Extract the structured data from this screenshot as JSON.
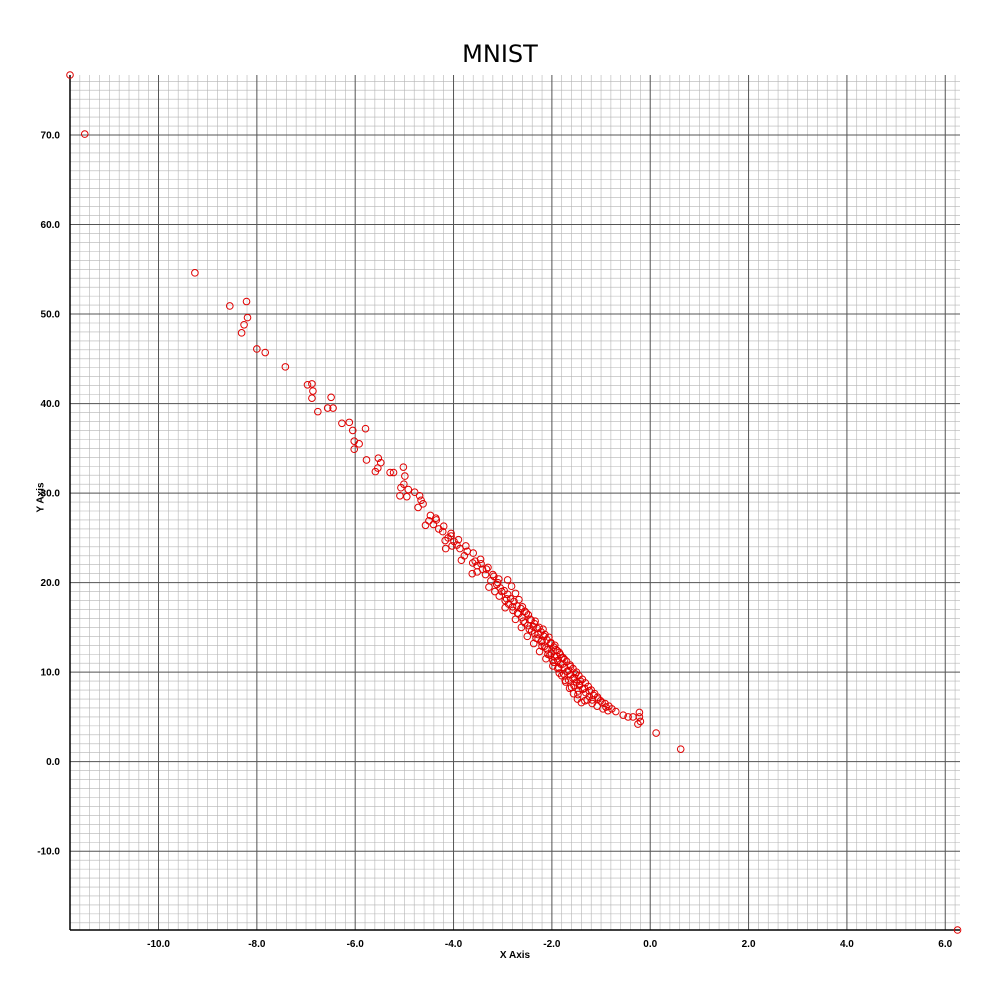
{
  "chart_data": {
    "type": "scatter",
    "title": "MNIST",
    "xlabel": "X Axis",
    "ylabel": "Y Axis",
    "xlim": [
      -11.8,
      6.3
    ],
    "ylim": [
      -18.8,
      76.7
    ],
    "grid": true,
    "x_ticks": [
      -10.0,
      -8.0,
      -6.0,
      -4.0,
      -2.0,
      0.0,
      2.0,
      4.0,
      6.0
    ],
    "y_ticks": [
      -10.0,
      0.0,
      10.0,
      20.0,
      30.0,
      40.0,
      50.0,
      60.0,
      70.0
    ],
    "x_tick_labels": [
      "-10.0",
      "-8.0",
      "-6.0",
      "-4.0",
      "-2.0",
      "0.0",
      "2.0",
      "4.0",
      "6.0"
    ],
    "y_tick_labels": [
      "-10.0",
      "0.0",
      "10.0",
      "20.0",
      "30.0",
      "40.0",
      "50.0",
      "60.0",
      "70.0"
    ],
    "marker": "open-circle",
    "marker_color": "#e00000",
    "grid_major_color": "#555555",
    "grid_minor_color": "#b4b4b4",
    "points": [
      [
        -11.8,
        76.7
      ],
      [
        -11.5,
        70.1
      ],
      [
        -9.26,
        54.6
      ],
      [
        -8.55,
        50.9
      ],
      [
        -8.21,
        51.4
      ],
      [
        -8.19,
        49.6
      ],
      [
        -8.26,
        48.8
      ],
      [
        -8.31,
        47.9
      ],
      [
        -8.0,
        46.1
      ],
      [
        -7.83,
        45.7
      ],
      [
        -7.42,
        44.1
      ],
      [
        -6.97,
        42.1
      ],
      [
        -6.88,
        42.2
      ],
      [
        -6.86,
        41.4
      ],
      [
        -6.88,
        40.6
      ],
      [
        -6.76,
        39.1
      ],
      [
        -6.49,
        40.7
      ],
      [
        -6.56,
        39.5
      ],
      [
        -6.45,
        39.5
      ],
      [
        -6.27,
        37.8
      ],
      [
        -6.12,
        37.9
      ],
      [
        -6.05,
        37.0
      ],
      [
        -5.79,
        37.2
      ],
      [
        -6.02,
        35.8
      ],
      [
        -5.92,
        35.5
      ],
      [
        -6.02,
        34.9
      ],
      [
        -5.77,
        33.7
      ],
      [
        -5.53,
        33.9
      ],
      [
        -5.48,
        33.4
      ],
      [
        -5.54,
        32.8
      ],
      [
        -5.59,
        32.4
      ],
      [
        -5.29,
        32.3
      ],
      [
        -5.22,
        32.3
      ],
      [
        -5.02,
        32.9
      ],
      [
        -4.99,
        31.9
      ],
      [
        -5.01,
        31.0
      ],
      [
        -5.07,
        30.6
      ],
      [
        -4.92,
        30.4
      ],
      [
        -4.79,
        30.1
      ],
      [
        -4.95,
        29.6
      ],
      [
        -5.09,
        29.7
      ],
      [
        -4.69,
        29.7
      ],
      [
        -4.66,
        29.2
      ],
      [
        -4.62,
        28.8
      ],
      [
        -4.72,
        28.4
      ],
      [
        -4.47,
        27.5
      ],
      [
        -4.36,
        27.2
      ],
      [
        -4.5,
        26.9
      ],
      [
        -4.41,
        26.5
      ],
      [
        -4.57,
        26.4
      ],
      [
        -4.3,
        26.0
      ],
      [
        -4.22,
        25.7
      ],
      [
        -4.05,
        25.5
      ],
      [
        -4.11,
        25.0
      ],
      [
        -4.17,
        24.7
      ],
      [
        -3.99,
        24.6
      ],
      [
        -3.93,
        24.2
      ],
      [
        -4.03,
        24.1
      ],
      [
        -3.87,
        23.8
      ],
      [
        -4.16,
        23.8
      ],
      [
        -3.72,
        23.5
      ],
      [
        -3.78,
        23.0
      ],
      [
        -3.84,
        22.5
      ],
      [
        -3.56,
        22.4
      ],
      [
        -3.61,
        22.2
      ],
      [
        -3.44,
        22.1
      ],
      [
        -3.52,
        21.9
      ],
      [
        -3.33,
        21.5
      ],
      [
        -3.41,
        21.5
      ],
      [
        -3.52,
        21.2
      ],
      [
        -3.62,
        21.0
      ],
      [
        -3.35,
        20.9
      ],
      [
        -3.18,
        20.7
      ],
      [
        -3.08,
        20.4
      ],
      [
        -3.24,
        20.2
      ],
      [
        -3.12,
        19.8
      ],
      [
        -3.28,
        19.5
      ],
      [
        -3.05,
        19.4
      ],
      [
        -2.97,
        19.1
      ],
      [
        -3.16,
        19.0
      ],
      [
        -2.9,
        18.7
      ],
      [
        -3.07,
        18.5
      ],
      [
        -2.84,
        18.2
      ],
      [
        -2.95,
        18.0
      ],
      [
        -2.77,
        17.9
      ],
      [
        -2.88,
        17.6
      ],
      [
        -2.71,
        17.4
      ],
      [
        -2.95,
        17.2
      ],
      [
        -2.63,
        17.1
      ],
      [
        -2.79,
        16.9
      ],
      [
        -2.55,
        16.8
      ],
      [
        -2.68,
        16.5
      ],
      [
        -2.48,
        16.4
      ],
      [
        -2.61,
        16.1
      ],
      [
        -2.74,
        15.9
      ],
      [
        -2.42,
        15.8
      ],
      [
        -2.55,
        15.5
      ],
      [
        -2.35,
        15.4
      ],
      [
        -2.49,
        15.2
      ],
      [
        -2.62,
        15.0
      ],
      [
        -2.3,
        14.9
      ],
      [
        -2.41,
        14.6
      ],
      [
        -2.22,
        14.5
      ],
      [
        -2.35,
        14.3
      ],
      [
        -2.5,
        14.0
      ],
      [
        -2.16,
        14.0
      ],
      [
        -2.28,
        13.7
      ],
      [
        -2.1,
        13.6
      ],
      [
        -2.22,
        13.4
      ],
      [
        -2.37,
        13.2
      ],
      [
        -2.02,
        13.2
      ],
      [
        -2.15,
        12.9
      ],
      [
        -1.96,
        12.8
      ],
      [
        -2.09,
        12.5
      ],
      [
        -2.25,
        12.3
      ],
      [
        -1.89,
        12.4
      ],
      [
        -2.01,
        12.1
      ],
      [
        -1.83,
        12.0
      ],
      [
        -1.95,
        11.7
      ],
      [
        -2.12,
        11.5
      ],
      [
        -1.77,
        11.6
      ],
      [
        -1.88,
        11.3
      ],
      [
        -1.7,
        11.2
      ],
      [
        -1.82,
        10.9
      ],
      [
        -1.98,
        10.7
      ],
      [
        -1.63,
        10.8
      ],
      [
        -1.75,
        10.5
      ],
      [
        -1.57,
        10.4
      ],
      [
        -1.69,
        10.1
      ],
      [
        -1.85,
        9.9
      ],
      [
        -1.5,
        10.0
      ],
      [
        -1.62,
        9.7
      ],
      [
        -1.45,
        9.6
      ],
      [
        -1.57,
        9.3
      ],
      [
        -1.73,
        9.1
      ],
      [
        -1.38,
        9.2
      ],
      [
        -1.5,
        8.9
      ],
      [
        -1.32,
        8.8
      ],
      [
        -1.44,
        8.5
      ],
      [
        -1.6,
        8.3
      ],
      [
        -1.26,
        8.4
      ],
      [
        -1.37,
        8.1
      ],
      [
        -1.2,
        8.0
      ],
      [
        -1.31,
        7.7
      ],
      [
        -1.47,
        7.5
      ],
      [
        -1.13,
        7.6
      ],
      [
        -1.24,
        7.3
      ],
      [
        -1.07,
        7.2
      ],
      [
        -1.18,
        6.9
      ],
      [
        -1.33,
        6.8
      ],
      [
        -1.01,
        6.8
      ],
      [
        -0.92,
        6.5
      ],
      [
        -0.84,
        6.2
      ],
      [
        -0.78,
        5.9
      ],
      [
        -0.7,
        5.6
      ],
      [
        -0.55,
        5.2
      ],
      [
        -0.45,
        5.0
      ],
      [
        -0.35,
        5.0
      ],
      [
        -0.22,
        5.0
      ],
      [
        -0.25,
        4.2
      ],
      [
        -0.2,
        4.5
      ],
      [
        -0.22,
        5.5
      ],
      [
        0.12,
        3.2
      ],
      [
        0.62,
        1.4
      ],
      [
        6.25,
        -18.8
      ],
      [
        -2.52,
        16.6
      ],
      [
        -2.44,
        15.9
      ],
      [
        -2.38,
        15.1
      ],
      [
        -2.28,
        14.2
      ],
      [
        -2.2,
        13.5
      ],
      [
        -2.12,
        12.7
      ],
      [
        -2.04,
        11.9
      ],
      [
        -1.96,
        11.1
      ],
      [
        -1.88,
        10.4
      ],
      [
        -1.8,
        9.6
      ],
      [
        -1.72,
        8.9
      ],
      [
        -1.64,
        8.2
      ],
      [
        -1.56,
        7.6
      ],
      [
        -1.48,
        7.0
      ],
      [
        -1.4,
        6.6
      ],
      [
        -2.6,
        17.3
      ],
      [
        -2.67,
        18.1
      ],
      [
        -2.74,
        18.8
      ],
      [
        -2.82,
        19.6
      ],
      [
        -2.9,
        20.3
      ],
      [
        -2.34,
        15.7
      ],
      [
        -2.18,
        14.8
      ],
      [
        -2.06,
        13.9
      ],
      [
        -1.94,
        13.0
      ],
      [
        -1.85,
        12.2
      ],
      [
        -1.74,
        11.4
      ],
      [
        -1.62,
        10.6
      ],
      [
        -1.52,
        9.8
      ],
      [
        -1.42,
        9.0
      ],
      [
        -1.34,
        8.2
      ],
      [
        -1.24,
        7.9
      ],
      [
        -1.15,
        7.4
      ],
      [
        -1.06,
        7.0
      ],
      [
        -0.98,
        6.6
      ],
      [
        -0.9,
        6.1
      ],
      [
        -2.46,
        14.8
      ],
      [
        -2.32,
        13.8
      ],
      [
        -2.2,
        12.9
      ],
      [
        -2.08,
        12.0
      ],
      [
        -1.98,
        11.3
      ],
      [
        -1.86,
        10.5
      ],
      [
        -1.76,
        9.8
      ],
      [
        -1.66,
        9.1
      ],
      [
        -1.55,
        8.5
      ],
      [
        -1.46,
        7.9
      ],
      [
        -2.58,
        15.7
      ],
      [
        -2.7,
        16.6
      ],
      [
        -2.8,
        17.3
      ],
      [
        -2.92,
        18.2
      ],
      [
        -3.02,
        19.0
      ],
      [
        -3.1,
        20.0
      ],
      [
        -3.2,
        20.9
      ],
      [
        -3.3,
        21.7
      ],
      [
        -3.45,
        22.6
      ],
      [
        -3.6,
        23.3
      ],
      [
        -3.75,
        24.1
      ],
      [
        -3.9,
        24.8
      ],
      [
        -4.05,
        25.2
      ],
      [
        -4.2,
        26.3
      ],
      [
        -4.35,
        27.0
      ],
      [
        -1.28,
        6.9
      ],
      [
        -1.18,
        6.5
      ],
      [
        -1.08,
        6.2
      ],
      [
        -0.96,
        5.9
      ],
      [
        -0.86,
        5.7
      ],
      [
        -1.9,
        11.8
      ],
      [
        -1.78,
        10.9
      ],
      [
        -1.66,
        10.2
      ],
      [
        -1.54,
        9.4
      ],
      [
        -1.44,
        8.7
      ],
      [
        -2.26,
        15.0
      ],
      [
        -2.14,
        14.2
      ],
      [
        -2.02,
        13.3
      ],
      [
        -1.92,
        12.5
      ],
      [
        -1.8,
        11.6
      ]
    ]
  }
}
